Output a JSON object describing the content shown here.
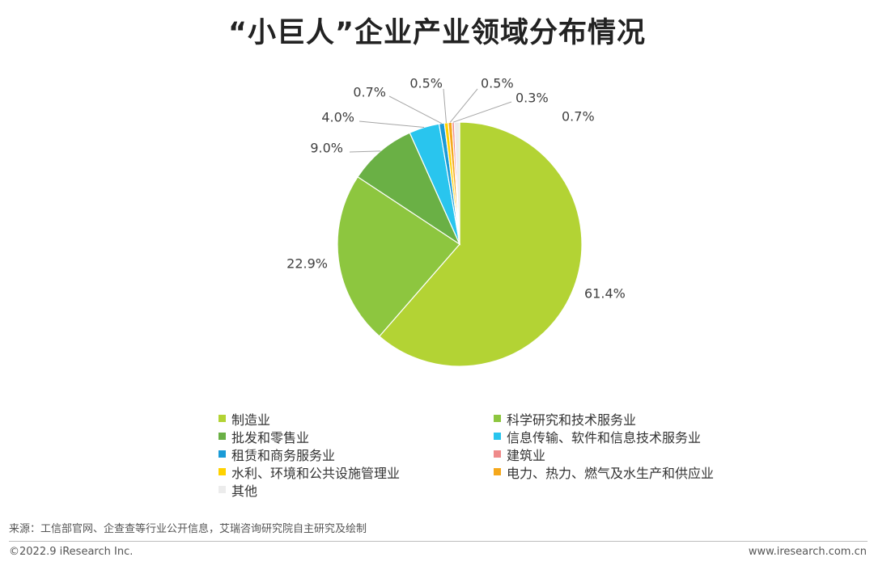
{
  "title": "“小巨人”企业产业领域分布情况",
  "chart_data": {
    "type": "pie",
    "title": "“小巨人”企业产业领域分布情况",
    "unit": "%",
    "slices": [
      {
        "name": "制造业",
        "value": 61.4,
        "label": "61.4%",
        "color": "#b3d334"
      },
      {
        "name": "科学研究和技术服务业",
        "value": 22.9,
        "label": "22.9%",
        "color": "#8dc63f"
      },
      {
        "name": "批发和零售业",
        "value": 9.0,
        "label": "9.0%",
        "color": "#6ab045"
      },
      {
        "name": "信息传输、软件和信息技术服务业",
        "value": 4.0,
        "label": "4.0%",
        "color": "#29c5ee"
      },
      {
        "name": "租赁和商务服务业",
        "value": 0.7,
        "label": "0.7%",
        "color": "#1a9bd7"
      },
      {
        "name": "水利、环境和公共设施管理业",
        "value": 0.5,
        "label": "0.5%",
        "color": "#ffd200"
      },
      {
        "name": "电力、热力、燃气及水生产和供应业",
        "value": 0.5,
        "label": "0.5%",
        "color": "#f5a81b"
      },
      {
        "name": "建筑业",
        "value": 0.3,
        "label": "0.3%",
        "color": "#ef8a8a"
      },
      {
        "name": "其他",
        "value": 0.7,
        "label": "0.7%",
        "color": "#ececec"
      }
    ],
    "legend_order": [
      "制造业",
      "科学研究和技术服务业",
      "批发和零售业",
      "信息传输、软件和信息技术服务业",
      "租赁和商务服务业",
      "建筑业",
      "水利、环境和公共设施管理业",
      "电力、热力、燃气及水生产和供应业",
      "其他"
    ],
    "legend_placement": "bottom"
  },
  "footer": {
    "source": "来源：工信部官网、企查查等行业公开信息，艾瑞咨询研究院自主研究及绘制",
    "copyright": "©2022.9 iResearch Inc.",
    "website": "www.iresearch.com.cn"
  }
}
